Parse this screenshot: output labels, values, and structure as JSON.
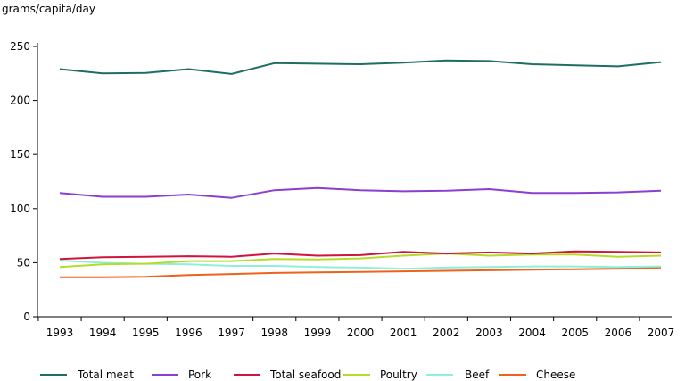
{
  "chart_data": {
    "type": "line",
    "title": "",
    "ylabel": "grams/capita/day",
    "xlabel": "",
    "ylim": [
      0,
      250
    ],
    "yticks": [
      0,
      50,
      100,
      150,
      200,
      250
    ],
    "grid": false,
    "legend_position": "bottom",
    "categories": [
      "1993",
      "1994",
      "1995",
      "1996",
      "1997",
      "1998",
      "1999",
      "2000",
      "2001",
      "2002",
      "2003",
      "2004",
      "2005",
      "2006",
      "2007"
    ],
    "series": [
      {
        "name": "Total meat",
        "color": "#1f6e62",
        "values": [
          229,
          225,
          225.5,
          229,
          224.5,
          234.5,
          234,
          233.5,
          235,
          237,
          236.5,
          233.5,
          232.5,
          231.5,
          235.5
        ]
      },
      {
        "name": "Pork",
        "color": "#8a3fd1",
        "values": [
          114.5,
          111,
          111,
          113,
          110,
          117,
          119,
          117,
          116,
          116.5,
          118,
          114.5,
          114.5,
          115,
          116.5
        ]
      },
      {
        "name": "Total seafood",
        "color": "#d0143e",
        "values": [
          53.5,
          55,
          55.5,
          56,
          55.5,
          58.5,
          56.5,
          57,
          60,
          58.5,
          59.5,
          58.5,
          60.5,
          60,
          59.5
        ]
      },
      {
        "name": "Poultry",
        "color": "#b5dc2b",
        "values": [
          46,
          48.5,
          49,
          51.5,
          51.5,
          53.5,
          53,
          54,
          56.5,
          58.5,
          56.5,
          57.5,
          57.5,
          55.5,
          56.5
        ]
      },
      {
        "name": "Beef",
        "color": "#8ef0d8",
        "values": [
          52,
          50,
          49,
          48.5,
          47,
          47,
          46,
          45.5,
          44.5,
          45.5,
          46,
          46.5,
          46.5,
          46,
          46.5
        ]
      },
      {
        "name": "Cheese",
        "color": "#f0611c",
        "values": [
          36.5,
          36.5,
          37,
          38.5,
          39.5,
          40.5,
          41,
          41.5,
          42,
          42.5,
          43,
          43.5,
          44,
          44.5,
          45.5
        ]
      }
    ]
  }
}
